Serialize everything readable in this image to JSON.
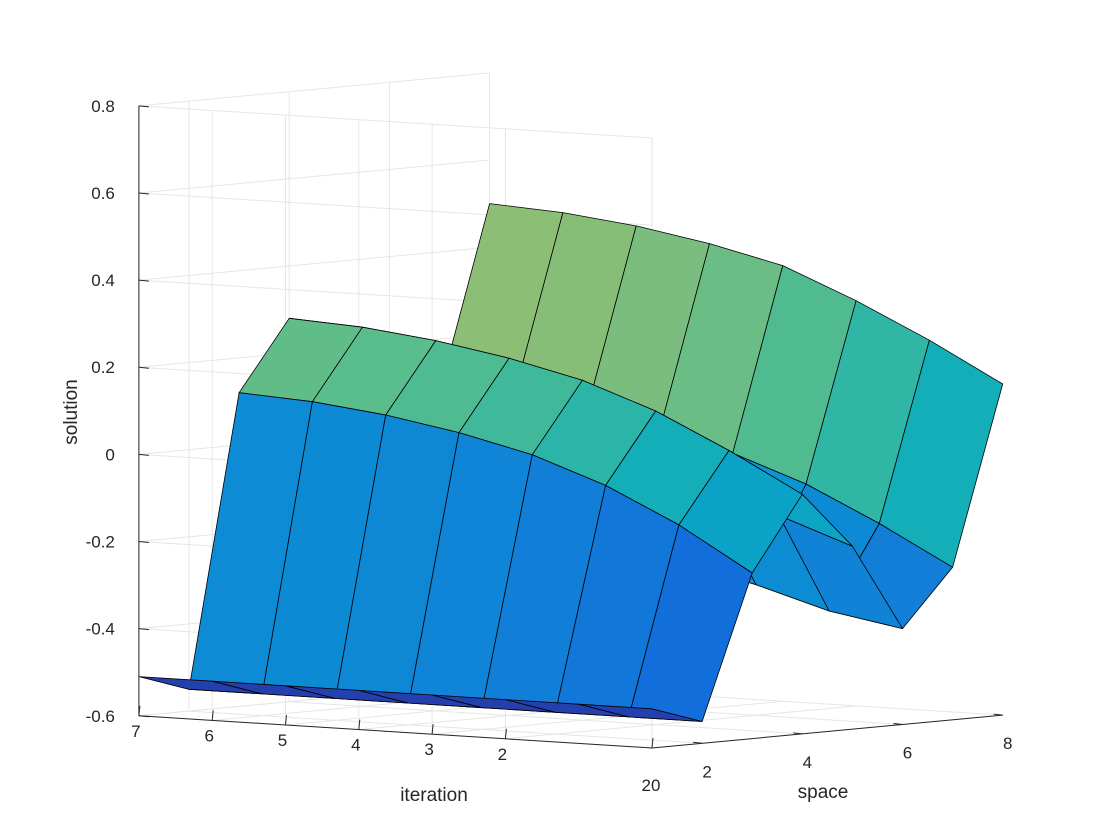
{
  "chart_data": {
    "type": "surface",
    "title": "",
    "xlabel": "space",
    "ylabel": "iteration",
    "zlabel": "solution",
    "xlim": [
      1,
      8
    ],
    "ylim": [
      0,
      7
    ],
    "zlim": [
      -0.6,
      0.8
    ],
    "xticks": [
      "2",
      "4",
      "6",
      "8"
    ],
    "yticks": [
      "0",
      "2",
      "3",
      "4",
      "5",
      "6",
      "7"
    ],
    "zticks": [
      "-0.6",
      "-0.4",
      "-0.2",
      "0",
      "0.2",
      "0.4",
      "0.6",
      "0.8"
    ],
    "corner_tick_label": "20",
    "grid": true,
    "colormap": "parula",
    "x": [
      1,
      2,
      3,
      4,
      5,
      6,
      7,
      8
    ],
    "y": [
      0,
      1,
      2,
      3,
      4,
      5,
      6,
      7
    ],
    "z": [
      [
        -0.51,
        -0.55,
        -0.22,
        -0.05,
        -0.18,
        -0.38,
        -0.25,
        0.16
      ],
      [
        -0.51,
        -0.55,
        -0.12,
        0.04,
        -0.12,
        -0.35,
        -0.16,
        0.25
      ],
      [
        -0.51,
        -0.55,
        -0.04,
        0.12,
        -0.06,
        -0.3,
        -0.08,
        0.33
      ],
      [
        -0.51,
        -0.55,
        0.02,
        0.18,
        -0.02,
        -0.26,
        -0.02,
        0.4
      ],
      [
        -0.51,
        -0.55,
        0.06,
        0.22,
        0.02,
        -0.22,
        0.02,
        0.44
      ],
      [
        -0.51,
        -0.55,
        0.09,
        0.25,
        0.04,
        -0.18,
        0.05,
        0.47
      ],
      [
        -0.51,
        -0.55,
        0.11,
        0.27,
        0.06,
        -0.16,
        0.07,
        0.49
      ],
      [
        -0.51,
        -0.55,
        0.12,
        0.28,
        0.07,
        -0.14,
        0.08,
        0.5
      ]
    ]
  }
}
